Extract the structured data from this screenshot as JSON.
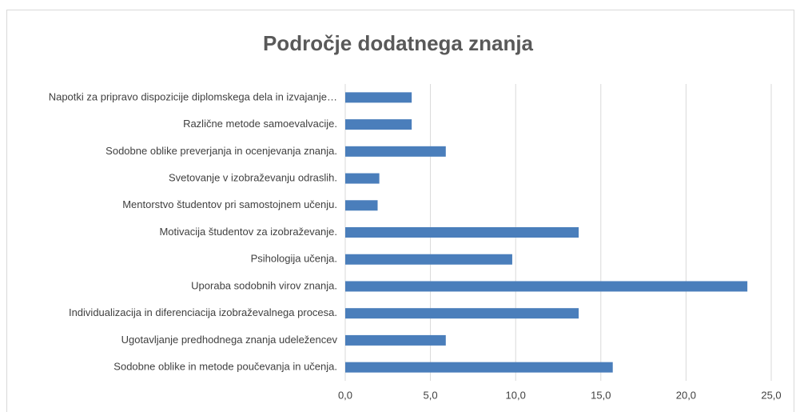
{
  "chart_data": {
    "type": "barh",
    "title": "Področje dodatnega znanja",
    "categories": [
      "Napotki za pripravo dispozicije diplomskega dela in izvajanje…",
      "Različne metode samoevalvacije.",
      "Sodobne oblike preverjanja in ocenjevanja znanja.",
      "Svetovanje v izobraževanju odraslih.",
      "Mentorstvo študentov pri samostojnem učenju.",
      "Motivacija študentov za izobraževanje.",
      "Psihologija učenja.",
      "Uporaba sodobnih virov znanja.",
      "Individualizacija in diferenciacija izobraževalnega procesa.",
      "Ugotavljanje predhodnega znanja udeležencev",
      "Sodobne oblike in metode poučevanja in učenja."
    ],
    "values": [
      3.9,
      3.9,
      5.9,
      2.0,
      1.9,
      13.7,
      9.8,
      23.6,
      13.7,
      5.9,
      15.7
    ],
    "color": "#4a7ebb",
    "xlim": [
      0,
      25
    ],
    "xticks": [
      {
        "value": 0,
        "label": "0,0"
      },
      {
        "value": 5,
        "label": "5,0"
      },
      {
        "value": 10,
        "label": "10,0"
      },
      {
        "value": 15,
        "label": "15,0"
      },
      {
        "value": 20,
        "label": "20,0"
      },
      {
        "value": 25,
        "label": "25,0"
      }
    ],
    "grid": true
  }
}
